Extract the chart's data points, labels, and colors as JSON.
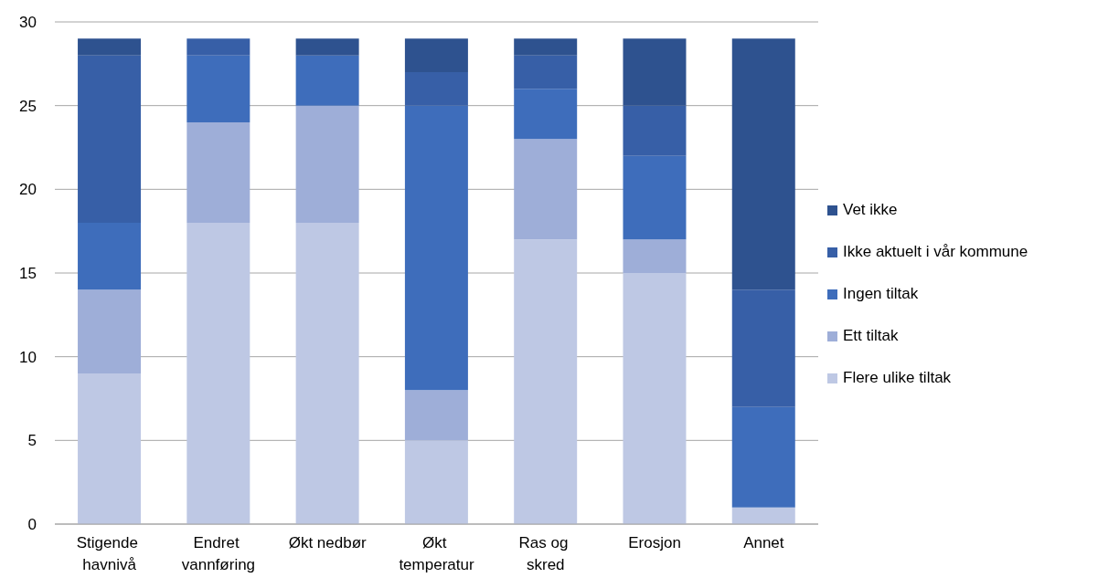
{
  "chart_data": {
    "type": "bar",
    "stacked": true,
    "categories": [
      "Stigende havnivå",
      "Endret vannføring",
      "Økt nedbør",
      "Økt temperatur",
      "Ras og skred",
      "Erosjon",
      "Annet"
    ],
    "series": [
      {
        "name": "Flere ulike tiltak",
        "color": "#bec8e4",
        "values": [
          9,
          18,
          18,
          5,
          17,
          15,
          1
        ]
      },
      {
        "name": "Ett tiltak",
        "color": "#9eaed8",
        "values": [
          5,
          6,
          7,
          3,
          6,
          2,
          0
        ]
      },
      {
        "name": "Ingen tiltak",
        "color": "#3e6dbb",
        "values": [
          4,
          4,
          3,
          17,
          3,
          5,
          6
        ]
      },
      {
        "name": "Ikke aktuelt i vår kommune",
        "color": "#375fa7",
        "values": [
          10,
          1,
          0,
          2,
          2,
          3,
          7
        ]
      },
      {
        "name": "Vet ikke",
        "color": "#2e528f",
        "values": [
          1,
          0,
          1,
          2,
          1,
          4,
          15
        ]
      }
    ],
    "ylim": [
      0,
      30
    ],
    "yticks": [
      0,
      5,
      10,
      15,
      20,
      25,
      30
    ],
    "grid": "y",
    "legend": "right"
  }
}
